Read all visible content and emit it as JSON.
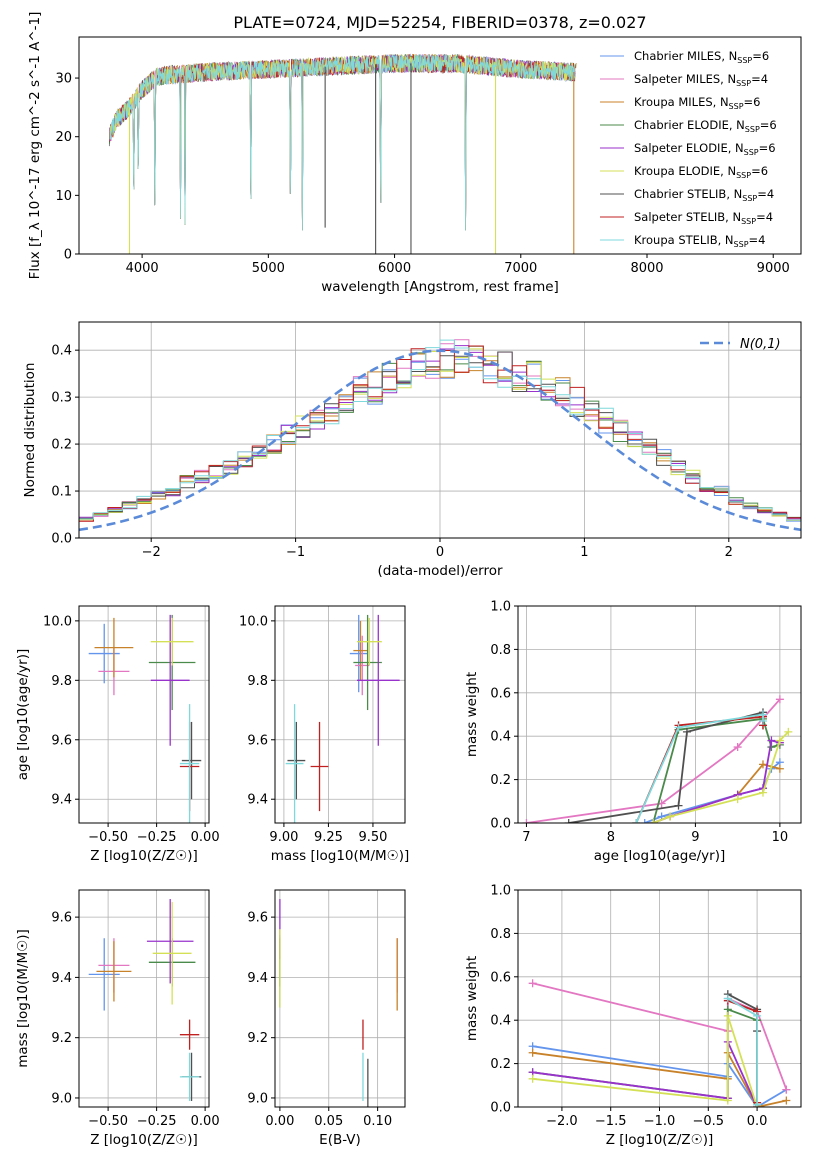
{
  "title": "PLATE=0724, MJD=52254, FIBERID=0378, z=0.027",
  "legend_labels": [
    "Chabrier MILES, N_SSP=6",
    "Salpeter MILES, N_SSP=4",
    "Kroupa MILES, N_SSP=6",
    "Chabrier ELODIE, N_SSP=6",
    "Salpeter ELODIE, N_SSP=6",
    "Kroupa ELODIE, N_SSP=6",
    "Chabrier STELIB, N_SSP=4",
    "Salpeter STELIB, N_SSP=4",
    "Kroupa STELIB, N_SSP=4"
  ],
  "colors": [
    "#6495ed",
    "#e377c2",
    "#c8822a",
    "#4a8a4a",
    "#9932cc",
    "#d4e157",
    "#505050",
    "#c02020",
    "#7fd8dc"
  ],
  "chart_data": [
    {
      "type": "line",
      "id": "spectrum",
      "title": "PLATE=0724, MJD=52254, FIBERID=0378, z=0.027",
      "xlabel": "wavelength [Angstrom, rest frame]",
      "ylabel": "Flux [f_λ 10^-17 erg cm^-2 s^-1 A^-1]",
      "xlim": [
        3500,
        9220
      ],
      "ylim": [
        0,
        37
      ],
      "xticks": [
        4000,
        5000,
        6000,
        7000,
        8000,
        9000
      ],
      "yticks": [
        0,
        10,
        20,
        30
      ],
      "grid": false,
      "legend_position": "top-right",
      "wave_range": [
        3740,
        7440
      ],
      "continuum": [
        [
          3740,
          20
        ],
        [
          3800,
          23
        ],
        [
          3900,
          25
        ],
        [
          4000,
          28
        ],
        [
          4100,
          30
        ],
        [
          4200,
          30.5
        ],
        [
          4500,
          31
        ],
        [
          5000,
          31.5
        ],
        [
          5500,
          32
        ],
        [
          6000,
          32.5
        ],
        [
          6500,
          32.5
        ],
        [
          7000,
          31.5
        ],
        [
          7440,
          31
        ]
      ],
      "absorption_lines": [
        [
          3934,
          8
        ],
        [
          3969,
          12
        ],
        [
          4101,
          4
        ],
        [
          4304,
          6
        ],
        [
          4340,
          5
        ],
        [
          4861,
          5
        ],
        [
          5175,
          6
        ],
        [
          5270,
          4
        ],
        [
          5890,
          4
        ],
        [
          6563,
          4
        ]
      ],
      "spikes": [
        [
          5450,
          4.5
        ],
        [
          5850,
          0
        ],
        [
          6130,
          0
        ],
        [
          6800,
          0
        ],
        [
          7420,
          0
        ],
        [
          3900,
          0
        ]
      ]
    },
    {
      "type": "histogram",
      "id": "residuals",
      "xlabel": "(data-model)/error",
      "ylabel": "Normed distribution",
      "xlim": [
        -2.5,
        2.5
      ],
      "ylim": [
        0,
        0.46
      ],
      "xticks": [
        -2,
        -1,
        0,
        1,
        2
      ],
      "yticks": [
        0.0,
        0.1,
        0.2,
        0.3,
        0.4
      ],
      "grid": true,
      "reference_curve": {
        "name": "N(0,1)",
        "mu": 0,
        "sigma": 1,
        "color": "#5b8bd8"
      },
      "legend_position": "top-right",
      "bin_edges": [
        -2.5,
        -2.4,
        -2.3,
        -2.2,
        -2.1,
        -2.0,
        -1.9,
        -1.8,
        -1.7,
        -1.6,
        -1.5,
        -1.4,
        -1.3,
        -1.2,
        -1.1,
        -1.0,
        -0.9,
        -0.8,
        -0.7,
        -0.6,
        -0.5,
        -0.4,
        -0.3,
        -0.2,
        -0.1,
        0.0,
        0.1,
        0.2,
        0.3,
        0.4,
        0.5,
        0.6,
        0.7,
        0.8,
        0.9,
        1.0,
        1.1,
        1.2,
        1.3,
        1.4,
        1.5,
        1.6,
        1.7,
        1.8,
        1.9,
        2.0,
        2.1,
        2.2,
        2.3,
        2.4,
        2.5
      ],
      "base_values": [
        0.04,
        0.05,
        0.06,
        0.07,
        0.08,
        0.09,
        0.1,
        0.12,
        0.13,
        0.14,
        0.15,
        0.17,
        0.19,
        0.2,
        0.22,
        0.24,
        0.25,
        0.27,
        0.29,
        0.31,
        0.32,
        0.34,
        0.35,
        0.37,
        0.38,
        0.38,
        0.39,
        0.38,
        0.37,
        0.36,
        0.35,
        0.34,
        0.32,
        0.31,
        0.29,
        0.27,
        0.25,
        0.23,
        0.21,
        0.19,
        0.17,
        0.15,
        0.13,
        0.11,
        0.1,
        0.08,
        0.07,
        0.06,
        0.05,
        0.04
      ]
    },
    {
      "type": "errorbar",
      "id": "age_vs_Z",
      "xlabel": "Z [log10(Z/Z☉)]",
      "ylabel": "age  [log10(age/yr)]",
      "xlim": [
        -0.65,
        0.02
      ],
      "ylim": [
        9.32,
        10.05
      ],
      "xticks": [
        -0.5,
        -0.25,
        0.0
      ],
      "xtick_labels": [
        "−0.50",
        "−0.25",
        "0.00"
      ],
      "yticks": [
        9.4,
        9.6,
        9.8,
        10.0
      ],
      "grid": true,
      "points": [
        {
          "x": -0.52,
          "y": 9.89,
          "xerr": 0.08,
          "yerr": 0.1,
          "color": 0
        },
        {
          "x": -0.47,
          "y": 9.83,
          "xerr": 0.08,
          "yerr": 0.08,
          "color": 1
        },
        {
          "x": -0.47,
          "y": 9.91,
          "xerr": 0.1,
          "yerr": 0.1,
          "color": 2
        },
        {
          "x": -0.17,
          "y": 9.86,
          "xerr": 0.12,
          "yerr": 0.16,
          "color": 3
        },
        {
          "x": -0.18,
          "y": 9.8,
          "xerr": 0.1,
          "yerr": 0.22,
          "color": 4
        },
        {
          "x": -0.17,
          "y": 9.93,
          "xerr": 0.11,
          "yerr": 0.08,
          "color": 5
        },
        {
          "x": -0.07,
          "y": 9.53,
          "xerr": 0.05,
          "yerr": 0.13,
          "color": 6
        },
        {
          "x": -0.08,
          "y": 9.51,
          "xerr": 0.05,
          "yerr": 0.15,
          "color": 7
        },
        {
          "x": -0.08,
          "y": 9.52,
          "xerr": 0.05,
          "yerr": 0.2,
          "color": 8
        }
      ]
    },
    {
      "type": "errorbar",
      "id": "age_vs_mass",
      "xlabel": "mass [log10(M/M☉)]",
      "ylabel": "",
      "xlim": [
        8.95,
        9.68
      ],
      "ylim": [
        9.32,
        10.05
      ],
      "xticks": [
        9.0,
        9.25,
        9.5
      ],
      "xtick_labels": [
        "9.00",
        "9.25",
        "9.50"
      ],
      "yticks": [
        9.4,
        9.6,
        9.8,
        10.0
      ],
      "grid": true,
      "points": [
        {
          "x": 9.42,
          "y": 9.89,
          "xerr": 0.05,
          "yerr": 0.13,
          "color": 0
        },
        {
          "x": 9.44,
          "y": 9.85,
          "xerr": 0.04,
          "yerr": 0.1,
          "color": 1
        },
        {
          "x": 9.43,
          "y": 9.9,
          "xerr": 0.04,
          "yerr": 0.1,
          "color": 2
        },
        {
          "x": 9.47,
          "y": 9.86,
          "xerr": 0.08,
          "yerr": 0.16,
          "color": 3
        },
        {
          "x": 9.53,
          "y": 9.8,
          "xerr": 0.12,
          "yerr": 0.22,
          "color": 4
        },
        {
          "x": 9.48,
          "y": 9.93,
          "xerr": 0.07,
          "yerr": 0.08,
          "color": 5
        },
        {
          "x": 9.07,
          "y": 9.53,
          "xerr": 0.05,
          "yerr": 0.13,
          "color": 6
        },
        {
          "x": 9.2,
          "y": 9.51,
          "xerr": 0.05,
          "yerr": 0.15,
          "color": 7
        },
        {
          "x": 9.06,
          "y": 9.52,
          "xerr": 0.05,
          "yerr": 0.2,
          "color": 8
        }
      ]
    },
    {
      "type": "line",
      "id": "cumulative_mass_vs_age",
      "xlabel": "age  [log10(age/yr)]",
      "ylabel": "mass weight",
      "xlim": [
        6.9,
        10.25
      ],
      "ylim": [
        0,
        1.0
      ],
      "xticks": [
        7,
        8,
        9,
        10
      ],
      "yticks": [
        0.0,
        0.2,
        0.4,
        0.6,
        0.8,
        1.0
      ],
      "grid": true,
      "series": [
        {
          "color": 0,
          "points": [
            [
              8.4,
              0.0
            ],
            [
              8.6,
              0.03
            ],
            [
              9.5,
              0.13
            ],
            [
              9.8,
              0.16
            ],
            [
              9.9,
              0.25
            ],
            [
              10.0,
              0.28
            ]
          ]
        },
        {
          "color": 1,
          "points": [
            [
              7.0,
              0.0
            ],
            [
              8.6,
              0.09
            ],
            [
              9.5,
              0.35
            ],
            [
              10.0,
              0.57
            ]
          ]
        },
        {
          "color": 2,
          "points": [
            [
              8.5,
              0.0
            ],
            [
              8.7,
              0.03
            ],
            [
              9.5,
              0.13
            ],
            [
              9.8,
              0.27
            ],
            [
              10.0,
              0.25
            ]
          ]
        },
        {
          "color": 3,
          "points": [
            [
              8.5,
              0.0
            ],
            [
              8.8,
              0.43
            ],
            [
              9.8,
              0.48
            ],
            [
              9.9,
              0.35
            ],
            [
              10.0,
              0.36
            ]
          ]
        },
        {
          "color": 4,
          "points": [
            [
              8.5,
              0.0
            ],
            [
              8.7,
              0.03
            ],
            [
              9.5,
              0.13
            ],
            [
              9.8,
              0.16
            ],
            [
              9.9,
              0.38
            ],
            [
              10.0,
              0.37
            ]
          ]
        },
        {
          "color": 5,
          "points": [
            [
              8.5,
              0.0
            ],
            [
              8.7,
              0.03
            ],
            [
              9.5,
              0.11
            ],
            [
              9.8,
              0.14
            ],
            [
              10.0,
              0.38
            ],
            [
              10.1,
              0.42
            ]
          ]
        },
        {
          "color": 6,
          "points": [
            [
              7.5,
              0.0
            ],
            [
              8.8,
              0.08
            ],
            [
              8.9,
              0.42
            ],
            [
              9.8,
              0.51
            ],
            [
              9.8,
              0.45
            ]
          ]
        },
        {
          "color": 7,
          "points": [
            [
              8.3,
              0.0
            ],
            [
              8.8,
              0.45
            ],
            [
              9.8,
              0.49
            ],
            [
              9.8,
              0.45
            ]
          ]
        },
        {
          "color": 8,
          "points": [
            [
              8.3,
              0.0
            ],
            [
              8.8,
              0.44
            ],
            [
              9.8,
              0.5
            ],
            [
              9.8,
              0.47
            ]
          ]
        }
      ]
    },
    {
      "type": "errorbar",
      "id": "mass_vs_Z",
      "xlabel": "Z [log10(Z/Z☉)]",
      "ylabel": "mass [log10(M/M☉)]",
      "xlim": [
        -0.65,
        0.02
      ],
      "ylim": [
        8.97,
        9.69
      ],
      "xticks": [
        -0.5,
        -0.25,
        0.0
      ],
      "xtick_labels": [
        "−0.50",
        "−0.25",
        "0.00"
      ],
      "yticks": [
        9.0,
        9.2,
        9.4,
        9.6
      ],
      "grid": true,
      "points": [
        {
          "x": -0.52,
          "y": 9.41,
          "xerr": 0.08,
          "yerr": 0.12,
          "color": 0
        },
        {
          "x": -0.47,
          "y": 9.44,
          "xerr": 0.08,
          "yerr": 0.09,
          "color": 1
        },
        {
          "x": -0.47,
          "y": 9.42,
          "xerr": 0.09,
          "yerr": 0.1,
          "color": 2
        },
        {
          "x": -0.17,
          "y": 9.45,
          "xerr": 0.12,
          "yerr": 0.08,
          "color": 3
        },
        {
          "x": -0.18,
          "y": 9.52,
          "xerr": 0.12,
          "yerr": 0.14,
          "color": 4
        },
        {
          "x": -0.17,
          "y": 9.48,
          "xerr": 0.1,
          "yerr": 0.17,
          "color": 5
        },
        {
          "x": -0.07,
          "y": 9.07,
          "xerr": 0.05,
          "yerr": 0.08,
          "color": 6
        },
        {
          "x": -0.08,
          "y": 9.21,
          "xerr": 0.05,
          "yerr": 0.05,
          "color": 7
        },
        {
          "x": -0.08,
          "y": 9.07,
          "xerr": 0.05,
          "yerr": 0.08,
          "color": 8
        }
      ]
    },
    {
      "type": "errorbar",
      "id": "mass_vs_ebv",
      "xlabel": "E(B-V)",
      "ylabel": "",
      "xlim": [
        -0.005,
        0.128
      ],
      "ylim": [
        8.97,
        9.69
      ],
      "xticks": [
        0.0,
        0.05,
        0.1
      ],
      "xtick_labels": [
        "0.00",
        "0.05",
        "0.10"
      ],
      "yticks": [
        9.0,
        9.2,
        9.4,
        9.6
      ],
      "grid": true,
      "points": [
        {
          "x": 0.0,
          "y": 9.42,
          "xerr": 0,
          "yerr": 0.12,
          "color": 0
        },
        {
          "x": 0.12,
          "y": 9.44,
          "xerr": 0,
          "yerr": 0.09,
          "color": 1
        },
        {
          "x": 0.12,
          "y": 9.41,
          "xerr": 0,
          "yerr": 0.12,
          "color": 2
        },
        {
          "x": 0.0,
          "y": 9.45,
          "xerr": 0,
          "yerr": 0.08,
          "color": 3
        },
        {
          "x": 0.0,
          "y": 9.56,
          "xerr": 0,
          "yerr": 0.1,
          "color": 4
        },
        {
          "x": 0.0,
          "y": 9.43,
          "xerr": 0,
          "yerr": 0.13,
          "color": 5
        },
        {
          "x": 0.09,
          "y": 9.05,
          "xerr": 0,
          "yerr": 0.08,
          "color": 6
        },
        {
          "x": 0.085,
          "y": 9.21,
          "xerr": 0,
          "yerr": 0.05,
          "color": 7
        },
        {
          "x": 0.085,
          "y": 9.07,
          "xerr": 0,
          "yerr": 0.08,
          "color": 8
        }
      ]
    },
    {
      "type": "line",
      "id": "cumulative_mass_vs_Z",
      "xlabel": "Z [log10(Z/Z☉)]",
      "ylabel": "mass weight",
      "xlim": [
        -2.45,
        0.45
      ],
      "ylim": [
        0,
        1.0
      ],
      "xticks": [
        -2.0,
        -1.5,
        -1.0,
        -0.5,
        0.0
      ],
      "xtick_labels": [
        "−2.0",
        "−1.5",
        "−1.0",
        "−0.5",
        "0.0"
      ],
      "yticks": [
        0.0,
        0.2,
        0.4,
        0.6,
        0.8,
        1.0
      ],
      "grid": true,
      "series": [
        {
          "color": 0,
          "points": [
            [
              -2.3,
              0.28
            ],
            [
              -0.3,
              0.14
            ],
            [
              -0.3,
              0.2
            ],
            [
              0.0,
              0.0
            ],
            [
              0.3,
              0.08
            ]
          ]
        },
        {
          "color": 1,
          "points": [
            [
              -2.3,
              0.57
            ],
            [
              -0.3,
              0.35
            ],
            [
              -0.3,
              0.5
            ],
            [
              0.0,
              0.44
            ],
            [
              0.3,
              0.08
            ]
          ]
        },
        {
          "color": 2,
          "points": [
            [
              -2.3,
              0.25
            ],
            [
              -0.3,
              0.13
            ],
            [
              -0.3,
              0.25
            ],
            [
              0.0,
              0.0
            ],
            [
              0.3,
              0.03
            ]
          ]
        },
        {
          "color": 3,
          "points": [
            [
              -2.3,
              0.16
            ],
            [
              -0.3,
              0.04
            ],
            [
              -0.3,
              0.45
            ],
            [
              0.0,
              0.4
            ],
            [
              0.0,
              0.02
            ]
          ]
        },
        {
          "color": 4,
          "points": [
            [
              -2.3,
              0.16
            ],
            [
              -0.3,
              0.04
            ],
            [
              -0.3,
              0.3
            ],
            [
              0.0,
              0.0
            ]
          ]
        },
        {
          "color": 5,
          "points": [
            [
              -2.3,
              0.13
            ],
            [
              -0.3,
              0.03
            ],
            [
              -0.3,
              0.42
            ],
            [
              0.0,
              0.0
            ]
          ]
        },
        {
          "color": 6,
          "points": [
            [
              -0.3,
              0.52
            ],
            [
              0.0,
              0.45
            ],
            [
              0.0,
              0.35
            ]
          ]
        },
        {
          "color": 7,
          "points": [
            [
              -0.3,
              0.49
            ],
            [
              0.0,
              0.44
            ],
            [
              0.0,
              0.02
            ]
          ]
        },
        {
          "color": 8,
          "points": [
            [
              -0.3,
              0.5
            ],
            [
              0.0,
              0.42
            ],
            [
              0.0,
              0.01
            ]
          ]
        }
      ]
    }
  ]
}
